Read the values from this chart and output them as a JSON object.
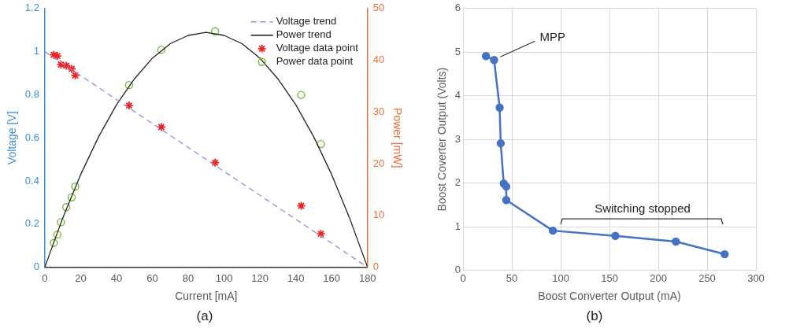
{
  "chart_data": [
    {
      "type": "scatter",
      "xlabel": "Current [mA]",
      "ylabel": "Voltage [V]",
      "y2label": "Power [mW]",
      "xlim": [
        0,
        180
      ],
      "xticks": [
        0,
        20,
        40,
        60,
        80,
        100,
        120,
        140,
        160,
        180
      ],
      "ylim": [
        0,
        1.2
      ],
      "yticks": [
        0,
        0.2,
        0.4,
        0.6,
        0.8,
        1,
        1.2
      ],
      "y2lim": [
        0,
        50
      ],
      "y2ticks": [
        0,
        10,
        20,
        30,
        40,
        50
      ],
      "grid": false,
      "legend": "top right",
      "series": [
        {
          "name": "Voltage trend",
          "type": "line",
          "color": "#8f8fdf",
          "line_style": "dashed",
          "marker": "none",
          "x": [
            0,
            180
          ],
          "values": [
            1.0,
            0
          ]
        },
        {
          "name": "Power trend",
          "type": "line",
          "color": "#222222",
          "line_style": "solid",
          "marker": "none",
          "axis": "y2",
          "x": [
            0,
            10,
            20,
            30,
            40,
            50,
            60,
            70,
            80,
            90,
            100,
            110,
            120,
            130,
            140,
            150,
            160,
            170,
            180
          ],
          "values": [
            0,
            9.5,
            17.9,
            25.2,
            31.4,
            36.4,
            40.4,
            43.2,
            44.8,
            45.4,
            44.8,
            43.2,
            40.4,
            36.4,
            31.4,
            25.2,
            17.9,
            9.5,
            0
          ]
        },
        {
          "name": "Voltage data point",
          "type": "scatter",
          "color": "#ee2222",
          "marker": "cross",
          "x": [
            5,
            7,
            9,
            12,
            15,
            17,
            47,
            65,
            95,
            143,
            154
          ],
          "values": [
            0.985,
            0.98,
            0.94,
            0.935,
            0.92,
            0.89,
            0.75,
            0.65,
            0.485,
            0.285,
            0.155
          ]
        },
        {
          "name": "Power data point",
          "type": "scatter",
          "color": "#77bb33",
          "marker": "circle",
          "axis": "y2",
          "x": [
            5,
            7,
            9,
            12,
            15,
            17,
            47,
            65,
            95,
            143,
            154
          ],
          "values": [
            4.7,
            6.3,
            8.7,
            11.6,
            13.5,
            15.6,
            35.2,
            42,
            45.6,
            33.3,
            23.8
          ]
        }
      ],
      "annotations": [
        "(a)"
      ]
    },
    {
      "type": "line",
      "xlabel": "Boost Converter Output (mA)",
      "ylabel": "Boost Coverter Output (Volts)",
      "xlim": [
        0,
        300
      ],
      "xticks": [
        0,
        50,
        100,
        150,
        200,
        250,
        300
      ],
      "ylim": [
        0,
        6
      ],
      "yticks": [
        0,
        1,
        2,
        3,
        4,
        5,
        6
      ],
      "grid": true,
      "legend": false,
      "marker": "circle",
      "line_style": "solid",
      "series": [
        {
          "color": "#4472c4",
          "x": [
            23.5,
            31.8,
            37.5,
            38.6,
            41.7,
            44.3,
            44.3,
            92,
            156,
            218,
            268
          ],
          "values": [
            4.91,
            4.82,
            3.73,
            2.91,
            1.99,
            1.92,
            1.61,
            0.91,
            0.79,
            0.66,
            0.37
          ]
        }
      ],
      "annotations": [
        {
          "text": "MPP",
          "x": 31.8,
          "y": 4.82
        },
        "Switching stopped",
        "(b)"
      ]
    }
  ]
}
